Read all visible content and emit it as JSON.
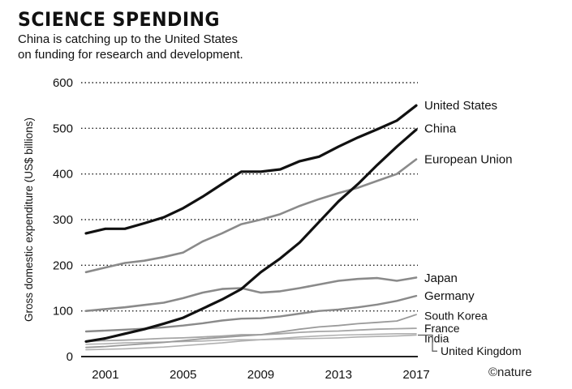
{
  "title": "SCIENCE SPENDING",
  "subtitle_lines": [
    "China is catching up to the United States",
    "on funding for research and development."
  ],
  "credit": "©nature",
  "chart_data": {
    "type": "line",
    "title": "SCIENCE SPENDING",
    "ylabel": "Gross domestic expenditure (US$ billions)",
    "xlabel": "",
    "ylim": [
      0,
      600
    ],
    "xlim": [
      2000,
      2017
    ],
    "yticks": [
      0,
      100,
      200,
      300,
      400,
      500,
      600
    ],
    "xticks": [
      2001,
      2005,
      2009,
      2013,
      2017
    ],
    "grid": "horizontal-dotted",
    "legend": "direct-labels-right",
    "x": [
      2000,
      2001,
      2002,
      2003,
      2004,
      2005,
      2006,
      2007,
      2008,
      2009,
      2010,
      2011,
      2012,
      2013,
      2014,
      2015,
      2016,
      2017
    ],
    "series": [
      {
        "name": "United States",
        "color": "#111111",
        "width": 3.2,
        "values": [
          270,
          280,
          280,
          292,
          305,
          325,
          350,
          378,
          405,
          405,
          410,
          428,
          438,
          460,
          480,
          498,
          517,
          550
        ]
      },
      {
        "name": "China",
        "color": "#111111",
        "width": 3.2,
        "values": [
          33,
          40,
          50,
          60,
          72,
          85,
          105,
          125,
          148,
          185,
          215,
          250,
          295,
          340,
          378,
          420,
          460,
          497
        ]
      },
      {
        "name": "European Union",
        "color": "#8a8a8a",
        "width": 2.6,
        "values": [
          185,
          195,
          205,
          210,
          218,
          228,
          252,
          270,
          290,
          300,
          312,
          330,
          345,
          358,
          370,
          385,
          400,
          432
        ]
      },
      {
        "name": "Japan",
        "color": "#8a8a8a",
        "width": 2.6,
        "values": [
          100,
          104,
          108,
          113,
          118,
          128,
          140,
          148,
          150,
          140,
          143,
          150,
          158,
          166,
          170,
          172,
          166,
          173
        ]
      },
      {
        "name": "Germany",
        "color": "#8a8a8a",
        "width": 2.4,
        "values": [
          55,
          57,
          59,
          61,
          64,
          68,
          73,
          79,
          83,
          84,
          88,
          94,
          100,
          103,
          108,
          114,
          122,
          133
        ]
      },
      {
        "name": "South Korea",
        "color": "#9a9a9a",
        "width": 1.8,
        "values": [
          20,
          22,
          25,
          28,
          31,
          35,
          39,
          42,
          45,
          48,
          54,
          60,
          65,
          68,
          72,
          75,
          78,
          92
        ]
      },
      {
        "name": "France",
        "color": "#a5a5a5",
        "width": 1.8,
        "values": [
          33,
          35,
          36,
          38,
          40,
          41,
          43,
          45,
          48,
          48,
          50,
          53,
          55,
          56,
          58,
          60,
          61,
          62
        ]
      },
      {
        "name": "India",
        "color": "#b0b0b0",
        "width": 1.6,
        "values": [
          15,
          16,
          17,
          19,
          21,
          24,
          27,
          30,
          34,
          37,
          40,
          43,
          45,
          47,
          48,
          49,
          50,
          50
        ]
      },
      {
        "name": "United Kingdom",
        "color": "#b0b0b0",
        "width": 1.6,
        "values": [
          27,
          28,
          30,
          31,
          32,
          33,
          34,
          36,
          37,
          37,
          38,
          39,
          40,
          41,
          43,
          44,
          45,
          47
        ]
      }
    ],
    "label_values": {
      "United States": 550,
      "China": 500,
      "European Union": 432,
      "Japan": 172,
      "Germany": 133,
      "South Korea": 90,
      "France": 62,
      "India": 40,
      "United Kingdom": 12
    }
  }
}
